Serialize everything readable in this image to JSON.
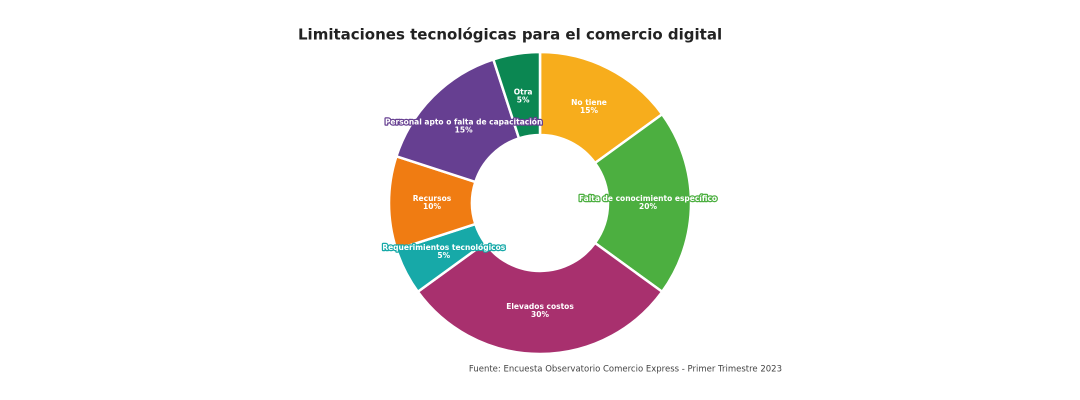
{
  "chart_data": {
    "type": "donut",
    "title": "Limitaciones tecnológicas para el comercio digital",
    "source": "Fuente: Encuesta Observatorio Comercio Express - Primer Trimestre 2023",
    "categories": [
      "No tiene",
      "Falta de conocimiento específico",
      "Elevados costos",
      "Requerimientos tecnológicos",
      "Recursos",
      "Personal apto o falta de capacitación",
      "Otra"
    ],
    "values": [
      15,
      20,
      30,
      5,
      10,
      15,
      5
    ],
    "value_labels": [
      "15%",
      "20%",
      "30%",
      "5%",
      "10%",
      "15%",
      "5%"
    ],
    "colors": [
      "#f7ad1c",
      "#4caf40",
      "#a8306e",
      "#17a9a8",
      "#f07c12",
      "#663f91",
      "#0b8752"
    ]
  }
}
